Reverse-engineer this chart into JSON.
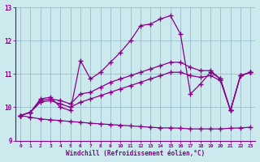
{
  "xlabel": "Windchill (Refroidissement éolien,°C)",
  "background_color": "#cce9ee",
  "line_color": "#880088",
  "grid_color": "#99bbcc",
  "xlim": [
    -0.5,
    23.5
  ],
  "ylim": [
    9,
    13
  ],
  "yticks": [
    9,
    10,
    11,
    12,
    13
  ],
  "xticks": [
    0,
    1,
    2,
    3,
    4,
    5,
    6,
    7,
    8,
    9,
    10,
    11,
    12,
    13,
    14,
    15,
    16,
    17,
    18,
    19,
    20,
    21,
    22,
    23
  ],
  "x": [
    0,
    1,
    2,
    3,
    4,
    5,
    6,
    7,
    8,
    9,
    10,
    11,
    12,
    13,
    14,
    15,
    16,
    17,
    18,
    19,
    20,
    21,
    22,
    23
  ],
  "curve1": [
    9.75,
    9.85,
    10.25,
    10.3,
    10.0,
    9.9,
    11.4,
    10.85,
    11.05,
    11.35,
    11.65,
    12.0,
    12.45,
    12.5,
    12.65,
    12.75,
    12.2,
    10.4,
    10.7,
    11.05,
    10.85,
    9.9,
    10.95,
    11.05
  ],
  "curve2": [
    9.75,
    9.85,
    10.2,
    10.25,
    10.2,
    10.1,
    10.4,
    10.45,
    10.6,
    10.75,
    10.85,
    10.95,
    11.05,
    11.15,
    11.25,
    11.35,
    11.35,
    11.2,
    11.1,
    11.1,
    10.85,
    9.9,
    10.95,
    11.05
  ],
  "curve3": [
    9.75,
    9.85,
    10.15,
    10.2,
    10.1,
    10.0,
    10.15,
    10.25,
    10.35,
    10.45,
    10.55,
    10.65,
    10.75,
    10.85,
    10.95,
    11.05,
    11.05,
    10.95,
    10.9,
    10.95,
    10.8,
    9.9,
    10.95,
    11.05
  ],
  "curve4": [
    9.75,
    9.7,
    9.65,
    9.62,
    9.6,
    9.57,
    9.55,
    9.52,
    9.5,
    9.48,
    9.46,
    9.44,
    9.42,
    9.4,
    9.38,
    9.38,
    9.37,
    9.35,
    9.35,
    9.35,
    9.35,
    9.37,
    9.38,
    9.4
  ]
}
